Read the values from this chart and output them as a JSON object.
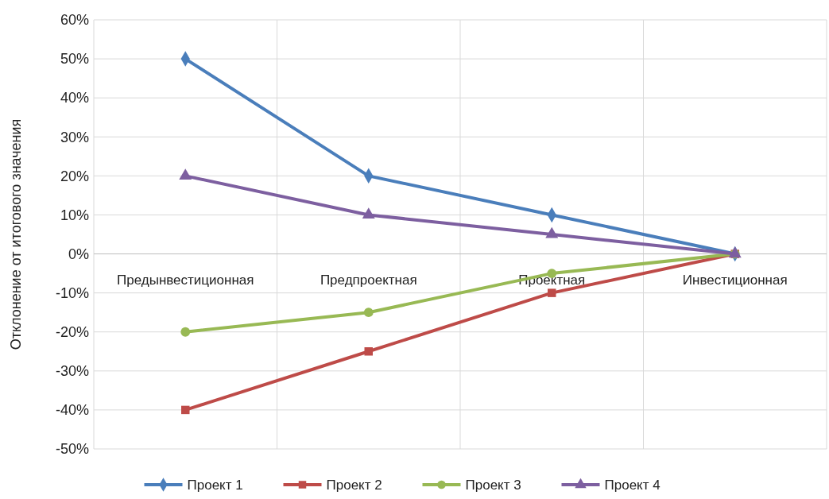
{
  "chart_data": {
    "type": "line",
    "ylabel": "Отклонение от итогового значения",
    "categories": [
      "Предынвестиционная",
      "Предпроектная",
      "Проектная",
      "Инвестиционная"
    ],
    "series": [
      {
        "name": "Проект 1",
        "color": "#4a7ebb",
        "marker": "diamond",
        "values": [
          50,
          20,
          10,
          0
        ]
      },
      {
        "name": "Проект 2",
        "color": "#be4b48",
        "marker": "square",
        "values": [
          -40,
          -25,
          -10,
          0
        ]
      },
      {
        "name": "Проект 3",
        "color": "#98b954",
        "marker": "circle",
        "values": [
          -20,
          -15,
          -5,
          0
        ]
      },
      {
        "name": "Проект 4",
        "color": "#7d5fa0",
        "marker": "triangle",
        "values": [
          20,
          10,
          5,
          0
        ]
      }
    ],
    "ylim": [
      -50,
      60
    ],
    "yticks": [
      {
        "value": -50,
        "label": "-50%"
      },
      {
        "value": -40,
        "label": "-40%"
      },
      {
        "value": -30,
        "label": "-30%"
      },
      {
        "value": -20,
        "label": "-20%"
      },
      {
        "value": -10,
        "label": "-10%"
      },
      {
        "value": 0,
        "label": "0%"
      },
      {
        "value": 10,
        "label": "10%"
      },
      {
        "value": 20,
        "label": "20%"
      },
      {
        "value": 30,
        "label": "30%"
      },
      {
        "value": 40,
        "label": "40%"
      },
      {
        "value": 50,
        "label": "50%"
      },
      {
        "value": 60,
        "label": "60%"
      }
    ],
    "grid": true,
    "legend": "bottom",
    "line_style": "solid"
  }
}
